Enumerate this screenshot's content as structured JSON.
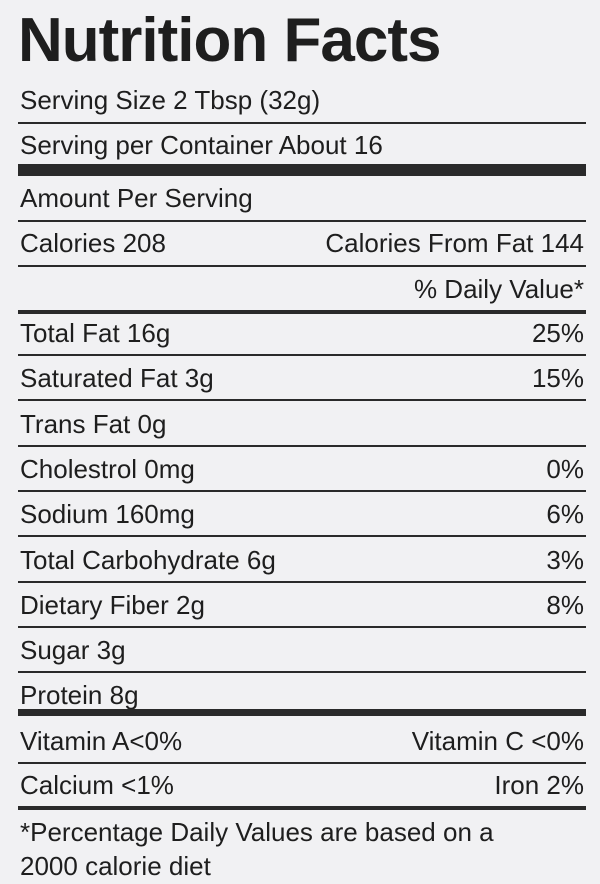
{
  "title": "Nutrition Facts",
  "serving_size": "Serving Size 2 Tbsp (32g)",
  "servings_per_container": "Serving per Container  About 16",
  "amount_per_serving": "Amount Per Serving",
  "calories": {
    "left": "Calories 208",
    "right": "Calories From Fat 144"
  },
  "daily_value_header": "% Daily Value*",
  "nutrients": [
    {
      "label": "Total Fat 16g",
      "dv": "25%"
    },
    {
      "label": "Saturated Fat 3g",
      "dv": "15%"
    },
    {
      "label": "Trans Fat 0g"
    },
    {
      "label": "Cholestrol 0mg",
      "dv": "0%"
    },
    {
      "label": "Sodium 160mg",
      "dv": "6%"
    },
    {
      "label": "Total Carbohydrate 6g",
      "dv": "3%"
    },
    {
      "label": "Dietary Fiber 2g",
      "dv": "8%"
    },
    {
      "label": "Sugar 3g"
    },
    {
      "label": "Protein 8g"
    }
  ],
  "vitamins": [
    {
      "left": "Vitamin A<0%",
      "right": "Vitamin C <0%"
    },
    {
      "left": "Calcium <1%",
      "right": "Iron 2%"
    }
  ],
  "footnote": [
    "*Percentage Daily Values are based on a",
    "2000 calorie diet"
  ]
}
